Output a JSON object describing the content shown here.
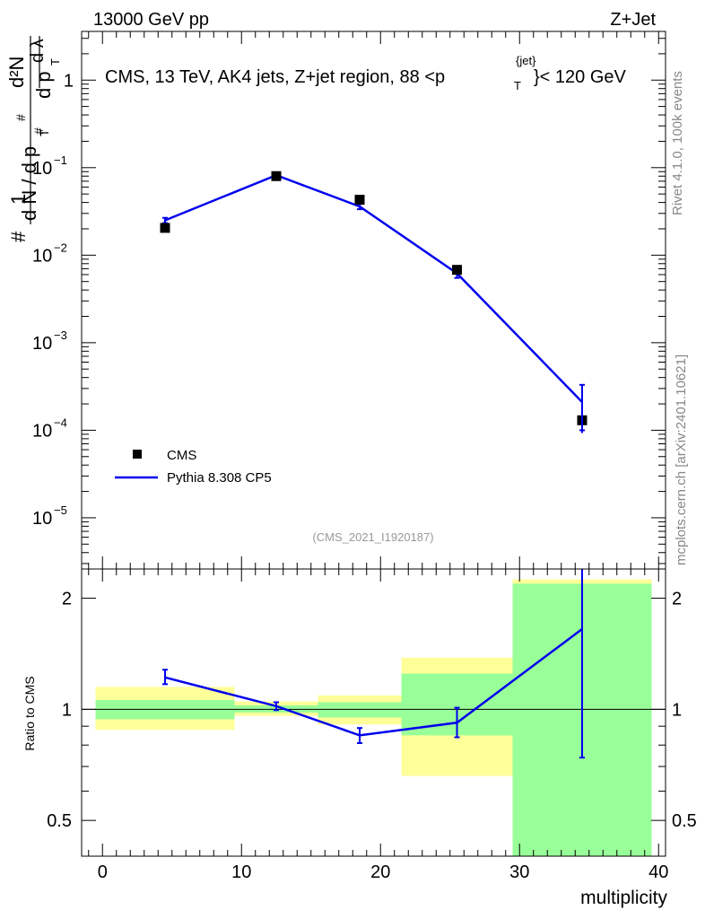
{
  "header": {
    "left": "13000 GeV pp",
    "right": "Z+Jet"
  },
  "title": {
    "main": "CMS, 13 TeV, AK4 jets, Z+jet region, 88 <p",
    "sup": "{jet}",
    "sub": "T",
    "tail": "}< 120 GeV"
  },
  "side_labels": {
    "rivet": "Rivet 4.1.0,  100k events",
    "mcplots": "mcplots.cern.ch [arXiv:2401.10621]"
  },
  "watermark": "(CMS_2021_I1920187)",
  "ylabel": {
    "hash1": "#",
    "one": "1",
    "dN": "d N / d p",
    "hash2": "#",
    "T1": "T",
    "d2N": "d²N",
    "dpT": "d p",
    "hash3": "#",
    "T2": "T",
    "dlambda": "d λ"
  },
  "ratio_label": "Ratio to CMS",
  "xlabel": "multiplicity",
  "chart_data": [
    {
      "type": "scatter",
      "name": "main",
      "yscale": "log",
      "xlim": [
        -1.5,
        40.5
      ],
      "ylim": [
        2.6e-06,
        3.6
      ],
      "x_ticks": [
        0,
        10,
        20,
        30,
        40
      ],
      "y_ticks": [
        {
          "value": 1,
          "label": "1"
        },
        {
          "value": 0.1,
          "label": "10",
          "exp": "−1"
        },
        {
          "value": 0.01,
          "label": "10",
          "exp": "−2"
        },
        {
          "value": 0.001,
          "label": "10",
          "exp": "−3"
        },
        {
          "value": 0.0001,
          "label": "10",
          "exp": "−4"
        },
        {
          "value": 1e-05,
          "label": "10",
          "exp": "−5"
        }
      ],
      "legend_position": "bottom-left",
      "series": [
        {
          "name": "CMS",
          "kind": "markers",
          "color": "#000000",
          "x": [
            4.5,
            12.5,
            18.5,
            25.5,
            34.5
          ],
          "y": [
            0.0205,
            0.08,
            0.043,
            0.0068,
            0.00013
          ],
          "yerr_low": [
            0.0205,
            0.08,
            0.043,
            0.0068,
            0.00013
          ],
          "yerr_high": [
            0.0205,
            0.08,
            0.043,
            0.0068,
            0.00013
          ]
        },
        {
          "name": "Pythia 8.308 CP5",
          "kind": "line",
          "color": "#0000ee",
          "x": [
            4.5,
            12.5,
            18.5,
            25.5,
            34.5
          ],
          "y": [
            0.025,
            0.082,
            0.036,
            0.0062,
            0.00021
          ],
          "yerr_low": [
            0.0233,
            0.079,
            0.0335,
            0.0055,
            0.0001
          ],
          "yerr_high": [
            0.0267,
            0.085,
            0.0385,
            0.0069,
            0.00033
          ]
        }
      ]
    },
    {
      "type": "line",
      "name": "ratio",
      "yscale": "log",
      "ylabel": "Ratio to CMS",
      "xlabel": "multiplicity",
      "xlim": [
        -1.5,
        40.5
      ],
      "ylim": [
        0.4,
        2.4
      ],
      "x_ticks": [
        0,
        10,
        20,
        30,
        40
      ],
      "y_ticks": [
        {
          "value": 0.5,
          "label": "0.5"
        },
        {
          "value": 1,
          "label": "1"
        },
        {
          "value": 2,
          "label": "2"
        }
      ],
      "reference_line": 1,
      "bands": [
        {
          "xlo": -0.5,
          "xhi": 9.5,
          "yellow": [
            0.88,
            1.15
          ],
          "green": [
            0.94,
            1.06
          ]
        },
        {
          "xlo": 9.5,
          "xhi": 15.5,
          "yellow": [
            0.96,
            1.05
          ],
          "green": [
            0.98,
            1.025
          ]
        },
        {
          "xlo": 15.5,
          "xhi": 21.5,
          "yellow": [
            0.91,
            1.09
          ],
          "green": [
            0.95,
            1.045
          ]
        },
        {
          "xlo": 21.5,
          "xhi": 29.5,
          "yellow": [
            0.66,
            1.38
          ],
          "green": [
            0.85,
            1.25
          ]
        },
        {
          "xlo": 29.5,
          "xhi": 39.5,
          "yellow": [
            0.4,
            2.25
          ],
          "green": [
            0.4,
            2.19
          ]
        }
      ],
      "series": [
        {
          "name": "Pythia 8.308 CP5",
          "color": "#0000ee",
          "x": [
            4.5,
            12.5,
            18.5,
            25.5,
            34.5
          ],
          "y": [
            1.22,
            1.02,
            0.85,
            0.92,
            1.65
          ],
          "yerr_low": [
            1.17,
            0.995,
            0.81,
            0.84,
            0.74
          ],
          "yerr_high": [
            1.28,
            1.045,
            0.89,
            1.01,
            2.4
          ]
        }
      ]
    }
  ]
}
